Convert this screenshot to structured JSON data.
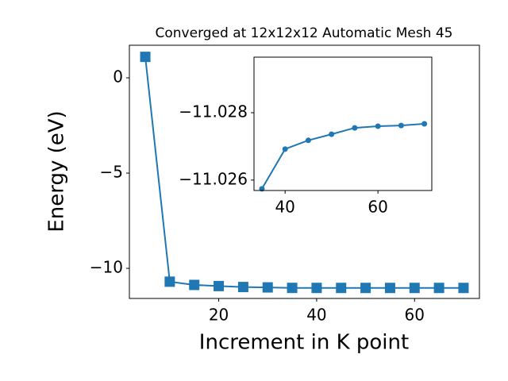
{
  "chart_data": [
    {
      "type": "line",
      "title": "Converged at 12x12x12 Automatic Mesh 45",
      "x_label": "Increment in K point",
      "y_label": "Energy (eV)",
      "x": [
        5,
        10,
        15,
        20,
        25,
        30,
        35,
        40,
        45,
        50,
        55,
        60,
        65,
        70
      ],
      "series": [
        {
          "color": "#1f77b4",
          "marker": "square",
          "values": [
            1.1,
            -10.7,
            -10.87,
            -10.93,
            -10.98,
            -11.0,
            -11.0257,
            -11.0269,
            -11.0272,
            -11.0274,
            -11.0276,
            -11.0276,
            -11.0276,
            -11.0277
          ]
        }
      ],
      "xlim": [
        1.75,
        73.25
      ],
      "ylim": [
        -11.58,
        1.71
      ],
      "xticks": [
        20,
        40,
        60
      ],
      "yticks": [
        {
          "value": -10,
          "label": "−10"
        },
        {
          "value": -5,
          "label": "−5"
        },
        0
      ]
    },
    {
      "type": "line",
      "x": [
        35,
        40,
        45,
        50,
        55,
        60,
        65,
        70
      ],
      "series": [
        {
          "color": "#1f77b4",
          "marker": "circle",
          "values": [
            -11.02574,
            -11.02692,
            -11.02718,
            -11.02736,
            -11.02755,
            -11.0276,
            -11.02762,
            -11.02767
          ]
        }
      ],
      "xlim": [
        33.3,
        71.6
      ],
      "ylim": [
        -11.02569,
        -11.02965
      ],
      "xticks": [
        40,
        60
      ],
      "yticks": [
        {
          "value": -11.028,
          "label": "−11.028"
        },
        {
          "value": -11.026,
          "label": "−11.026"
        }
      ]
    }
  ]
}
